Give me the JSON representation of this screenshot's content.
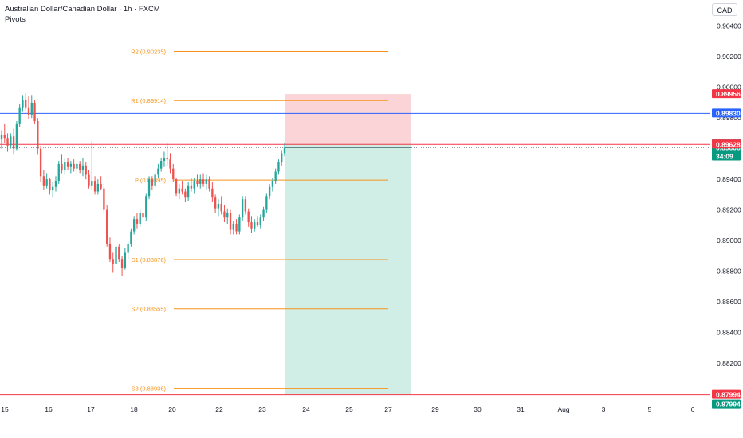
{
  "header": {
    "title": "Australian Dollar/Canadian Dollar · 1h · FXCM",
    "indicator": "Pivots",
    "currency": "CAD"
  },
  "colors": {
    "up": "#26a69a",
    "down": "#ef5350",
    "pivot": "#f7931a",
    "blue_line": "#2962ff",
    "red_line": "#f23645",
    "stop_zone": "#f9c6c9",
    "target_zone": "#c8ebe2",
    "price_tag": "#089981",
    "last_tag": "#787b86"
  },
  "chart_data": {
    "type": "candlestick",
    "x_ticks": [
      "15",
      "16",
      "17",
      "18",
      "19",
      "20",
      "22",
      "23",
      "24",
      "25",
      "27",
      "29",
      "30",
      "31",
      "Aug",
      "3",
      "5",
      "6"
    ],
    "y_ticks": [
      "0.90400",
      "0.90200",
      "0.90000",
      "0.89800",
      "0.89600",
      "0.89400",
      "0.89200",
      "0.89000",
      "0.88800",
      "0.88600",
      "0.88400",
      "0.88200",
      "0.88000"
    ],
    "ylim": [
      0.8793,
      0.9057
    ],
    "pivots": [
      {
        "label": "R2 (0.90235)",
        "value": 0.90235
      },
      {
        "label": "R1 (0.89914)",
        "value": 0.89914
      },
      {
        "label": "P (0.89395)",
        "value": 0.89395
      },
      {
        "label": "S1 (0.88876)",
        "value": 0.88876
      },
      {
        "label": "S2 (0.88555)",
        "value": 0.88555
      },
      {
        "label": "S3 (0.88036)",
        "value": 0.88036
      }
    ],
    "horizontal_lines": [
      {
        "value": 0.8983,
        "label": "0.89830",
        "color": "#2962ff"
      },
      {
        "value": 0.89628,
        "label": "0.89628",
        "color": "#f23645"
      },
      {
        "value": 0.87994,
        "label": "0.87994",
        "color": "#f23645"
      }
    ],
    "price_tags": [
      {
        "value": 0.89956,
        "label": "0.89956",
        "color": "#f23645"
      },
      {
        "value": 0.89631,
        "label": "0.89631",
        "color": "#787b86"
      },
      {
        "value": 0.89606,
        "label": "0.89606",
        "sub": "34:09",
        "color": "#089981"
      },
      {
        "value": 0.87994,
        "label": "0.87994",
        "color": "#089981"
      }
    ],
    "position": {
      "entry": 0.89628,
      "stop": 0.89956,
      "target": 0.87994,
      "start_x": 358,
      "end_x": 515
    },
    "candles": [
      [
        0.8966,
        0.8972,
        0.896,
        0.8969
      ],
      [
        0.8969,
        0.8976,
        0.8964,
        0.8967
      ],
      [
        0.8967,
        0.897,
        0.8958,
        0.8962
      ],
      [
        0.8962,
        0.897,
        0.896,
        0.8968
      ],
      [
        0.8968,
        0.8973,
        0.8956,
        0.896
      ],
      [
        0.896,
        0.8978,
        0.8959,
        0.8976
      ],
      [
        0.8976,
        0.8989,
        0.8974,
        0.8987
      ],
      [
        0.8987,
        0.8995,
        0.8984,
        0.8992
      ],
      [
        0.8992,
        0.8996,
        0.8985,
        0.8987
      ],
      [
        0.8987,
        0.8994,
        0.8979,
        0.8982
      ],
      [
        0.8982,
        0.8995,
        0.898,
        0.899
      ],
      [
        0.899,
        0.8992,
        0.8976,
        0.8978
      ],
      [
        0.8978,
        0.898,
        0.8956,
        0.896
      ],
      [
        0.896,
        0.8962,
        0.8938,
        0.8942
      ],
      [
        0.8942,
        0.8946,
        0.8933,
        0.8936
      ],
      [
        0.8936,
        0.8944,
        0.8934,
        0.894
      ],
      [
        0.894,
        0.8941,
        0.893,
        0.8933
      ],
      [
        0.8933,
        0.8938,
        0.8928,
        0.8935
      ],
      [
        0.8935,
        0.8942,
        0.8932,
        0.8939
      ],
      [
        0.8939,
        0.8952,
        0.8937,
        0.895
      ],
      [
        0.895,
        0.8956,
        0.8944,
        0.8946
      ],
      [
        0.8946,
        0.8954,
        0.8943,
        0.8951
      ],
      [
        0.8951,
        0.8954,
        0.8946,
        0.8948
      ],
      [
        0.8948,
        0.8952,
        0.8944,
        0.895
      ],
      [
        0.895,
        0.8953,
        0.8945,
        0.8947
      ],
      [
        0.8947,
        0.8952,
        0.8944,
        0.895
      ],
      [
        0.895,
        0.8952,
        0.8944,
        0.8946
      ],
      [
        0.8946,
        0.8954,
        0.8942,
        0.8949
      ],
      [
        0.8949,
        0.8951,
        0.894,
        0.8943
      ],
      [
        0.8943,
        0.8946,
        0.8934,
        0.8936
      ],
      [
        0.8936,
        0.8965,
        0.8933,
        0.8939
      ],
      [
        0.8939,
        0.8942,
        0.893,
        0.8932
      ],
      [
        0.8932,
        0.894,
        0.893,
        0.8937
      ],
      [
        0.8937,
        0.8942,
        0.8933,
        0.8934
      ],
      [
        0.8934,
        0.8937,
        0.8918,
        0.892
      ],
      [
        0.892,
        0.8923,
        0.8896,
        0.8898
      ],
      [
        0.8898,
        0.8902,
        0.8886,
        0.8888
      ],
      [
        0.8888,
        0.8892,
        0.8879,
        0.8885
      ],
      [
        0.8885,
        0.8899,
        0.8883,
        0.8896
      ],
      [
        0.8896,
        0.8898,
        0.8886,
        0.8888
      ],
      [
        0.8888,
        0.889,
        0.8877,
        0.8882
      ],
      [
        0.8882,
        0.8895,
        0.8881,
        0.8892
      ],
      [
        0.8892,
        0.89,
        0.8888,
        0.8898
      ],
      [
        0.8898,
        0.8908,
        0.8896,
        0.8906
      ],
      [
        0.8906,
        0.8916,
        0.8904,
        0.8914
      ],
      [
        0.8914,
        0.8918,
        0.8908,
        0.8911
      ],
      [
        0.8911,
        0.892,
        0.8909,
        0.8918
      ],
      [
        0.8918,
        0.8923,
        0.8913,
        0.8915
      ],
      [
        0.8915,
        0.8931,
        0.8913,
        0.8929
      ],
      [
        0.8929,
        0.8942,
        0.8927,
        0.894
      ],
      [
        0.894,
        0.8942,
        0.8933,
        0.8936
      ],
      [
        0.8936,
        0.8945,
        0.8934,
        0.8943
      ],
      [
        0.8943,
        0.895,
        0.8941,
        0.8947
      ],
      [
        0.8947,
        0.8954,
        0.8945,
        0.8952
      ],
      [
        0.8952,
        0.8958,
        0.8948,
        0.8954
      ],
      [
        0.8954,
        0.8964,
        0.8949,
        0.8953
      ],
      [
        0.8953,
        0.8957,
        0.8944,
        0.8947
      ],
      [
        0.8947,
        0.895,
        0.8938,
        0.894
      ],
      [
        0.894,
        0.8941,
        0.8929,
        0.8931
      ],
      [
        0.8931,
        0.8937,
        0.8927,
        0.8934
      ],
      [
        0.8934,
        0.8939,
        0.893,
        0.8932
      ],
      [
        0.8932,
        0.8934,
        0.8925,
        0.8928
      ],
      [
        0.8928,
        0.8938,
        0.8926,
        0.8936
      ],
      [
        0.8936,
        0.8941,
        0.8932,
        0.8934
      ],
      [
        0.8934,
        0.8941,
        0.8931,
        0.8939
      ],
      [
        0.8939,
        0.8943,
        0.8935,
        0.8937
      ],
      [
        0.8937,
        0.8943,
        0.8934,
        0.894
      ],
      [
        0.894,
        0.8944,
        0.8935,
        0.8937
      ],
      [
        0.8937,
        0.8943,
        0.8933,
        0.894
      ],
      [
        0.894,
        0.8942,
        0.8932,
        0.8934
      ],
      [
        0.8934,
        0.8938,
        0.8925,
        0.8928
      ],
      [
        0.8928,
        0.893,
        0.8918,
        0.8921
      ],
      [
        0.8921,
        0.8927,
        0.8916,
        0.8924
      ],
      [
        0.8924,
        0.8929,
        0.8917,
        0.8919
      ],
      [
        0.8919,
        0.8923,
        0.8912,
        0.8915
      ],
      [
        0.8915,
        0.8921,
        0.8911,
        0.8918
      ],
      [
        0.8918,
        0.892,
        0.8904,
        0.8907
      ],
      [
        0.8907,
        0.8913,
        0.8904,
        0.8911
      ],
      [
        0.8911,
        0.8914,
        0.8904,
        0.8906
      ],
      [
        0.8906,
        0.8917,
        0.8904,
        0.8915
      ],
      [
        0.8915,
        0.8929,
        0.8913,
        0.8927
      ],
      [
        0.8927,
        0.8929,
        0.8917,
        0.8919
      ],
      [
        0.8919,
        0.8921,
        0.8909,
        0.8912
      ],
      [
        0.8912,
        0.8916,
        0.8905,
        0.8908
      ],
      [
        0.8908,
        0.8914,
        0.8906,
        0.8912
      ],
      [
        0.8912,
        0.8916,
        0.8909,
        0.891
      ],
      [
        0.891,
        0.8917,
        0.8908,
        0.8915
      ],
      [
        0.8915,
        0.8922,
        0.8913,
        0.892
      ],
      [
        0.892,
        0.8931,
        0.8918,
        0.8929
      ],
      [
        0.8929,
        0.8937,
        0.8927,
        0.8935
      ],
      [
        0.8935,
        0.8941,
        0.8932,
        0.8939
      ],
      [
        0.8939,
        0.8947,
        0.8937,
        0.8945
      ],
      [
        0.8945,
        0.8953,
        0.8943,
        0.8951
      ],
      [
        0.8951,
        0.8959,
        0.8949,
        0.8957
      ],
      [
        0.8957,
        0.8964,
        0.8955,
        0.89606
      ]
    ]
  }
}
